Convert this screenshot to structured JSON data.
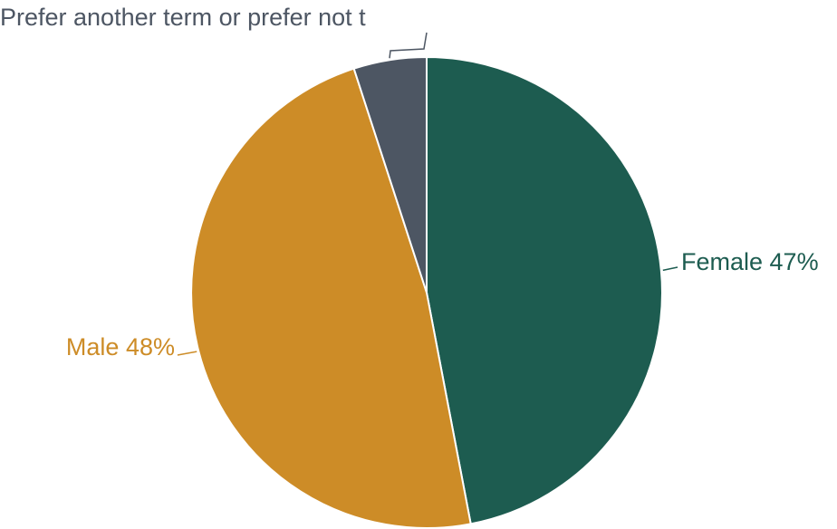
{
  "chart_data": {
    "type": "pie",
    "slices": [
      {
        "label": "Female",
        "value": 47,
        "display": "Female 47%",
        "color": "#1d5c50"
      },
      {
        "label": "Male",
        "value": 48,
        "display": "Male 48%",
        "color": "#cd8c27"
      },
      {
        "label": "Prefer another term or prefer not to say",
        "value": 5,
        "display": "Prefer another term or prefer not t",
        "color": "#4d5663"
      }
    ],
    "start_angle_deg": 0,
    "direction": "clockwise"
  }
}
